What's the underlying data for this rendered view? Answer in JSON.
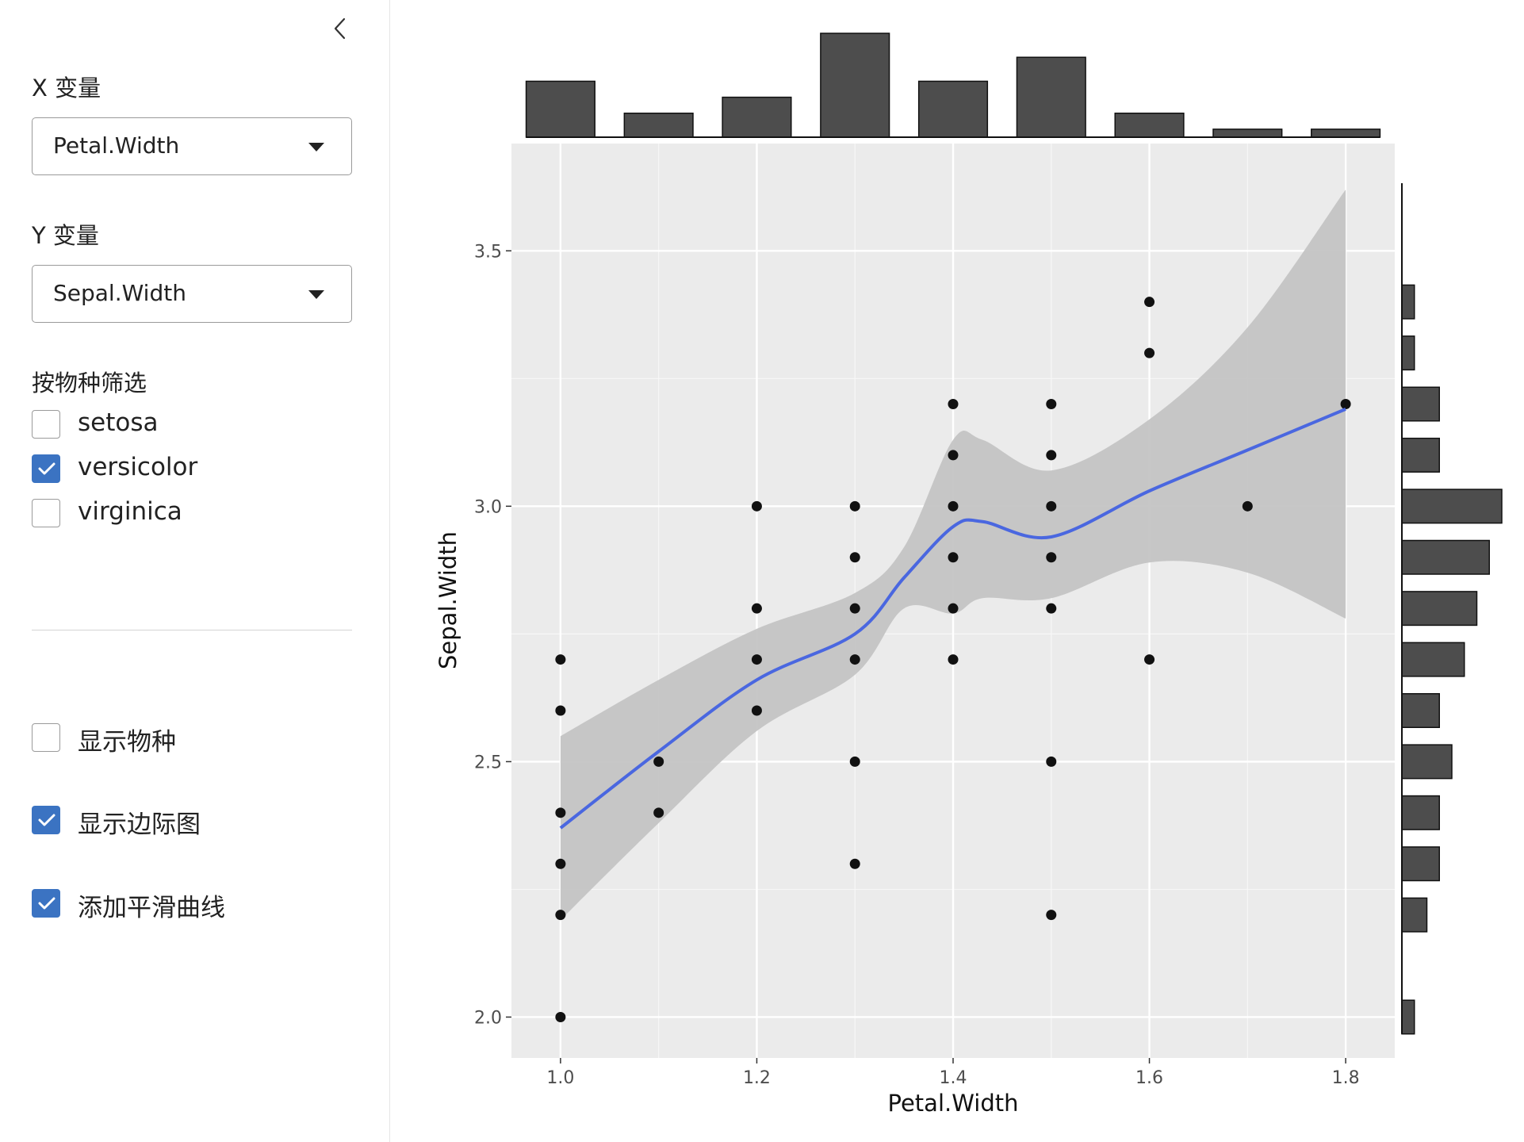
{
  "sidebar": {
    "x_var": {
      "label": "X 变量",
      "value": "Petal.Width"
    },
    "y_var": {
      "label": "Y 变量",
      "value": "Sepal.Width"
    },
    "filter": {
      "label": "按物种筛选",
      "options": [
        {
          "label": "setosa",
          "checked": false
        },
        {
          "label": "versicolor",
          "checked": true
        },
        {
          "label": "virginica",
          "checked": false
        }
      ]
    },
    "toggles": {
      "show_species": {
        "label": "显示物种",
        "checked": false
      },
      "show_marginal": {
        "label": "显示边际图",
        "checked": true
      },
      "add_smooth": {
        "label": "添加平滑曲线",
        "checked": true
      }
    }
  },
  "chart_data": {
    "type": "scatter",
    "xlabel": "Petal.Width",
    "ylabel": "Sepal.Width",
    "xlim": [
      0.95,
      1.85
    ],
    "ylim": [
      1.92,
      3.71
    ],
    "x_ticks": [
      1.0,
      1.2,
      1.4,
      1.6,
      1.8
    ],
    "x_tick_labels": [
      "1.0",
      "1.2",
      "1.4",
      "1.6",
      "1.8"
    ],
    "y_ticks": [
      2.0,
      2.5,
      3.0,
      3.5
    ],
    "y_tick_labels": [
      "2.0",
      "2.5",
      "3.0",
      "3.5"
    ],
    "grid": true,
    "panel_background": "#ebebeb",
    "points": [
      [
        1.0,
        2.0
      ],
      [
        1.0,
        2.2
      ],
      [
        1.0,
        2.3
      ],
      [
        1.0,
        2.4
      ],
      [
        1.0,
        2.6
      ],
      [
        1.0,
        2.7
      ],
      [
        1.1,
        2.4
      ],
      [
        1.1,
        2.5
      ],
      [
        1.2,
        2.6
      ],
      [
        1.2,
        2.7
      ],
      [
        1.2,
        2.8
      ],
      [
        1.2,
        3.0
      ],
      [
        1.3,
        2.3
      ],
      [
        1.3,
        2.5
      ],
      [
        1.3,
        2.7
      ],
      [
        1.3,
        2.8
      ],
      [
        1.3,
        2.9
      ],
      [
        1.3,
        3.0
      ],
      [
        1.4,
        2.7
      ],
      [
        1.4,
        2.8
      ],
      [
        1.4,
        2.9
      ],
      [
        1.4,
        3.0
      ],
      [
        1.4,
        3.1
      ],
      [
        1.4,
        3.2
      ],
      [
        1.5,
        2.2
      ],
      [
        1.5,
        2.5
      ],
      [
        1.5,
        2.8
      ],
      [
        1.5,
        2.9
      ],
      [
        1.5,
        3.0
      ],
      [
        1.5,
        3.1
      ],
      [
        1.5,
        3.2
      ],
      [
        1.6,
        2.7
      ],
      [
        1.6,
        3.3
      ],
      [
        1.6,
        3.4
      ],
      [
        1.7,
        3.0
      ],
      [
        1.8,
        3.2
      ]
    ],
    "smooth": {
      "method": "loess",
      "color": "#4a67e0",
      "band_color": "#c4c4c4",
      "fit": [
        [
          1.0,
          2.37
        ],
        [
          1.1,
          2.52
        ],
        [
          1.2,
          2.66
        ],
        [
          1.3,
          2.75
        ],
        [
          1.35,
          2.86
        ],
        [
          1.4,
          2.96
        ],
        [
          1.43,
          2.97
        ],
        [
          1.5,
          2.94
        ],
        [
          1.6,
          3.03
        ],
        [
          1.7,
          3.11
        ],
        [
          1.8,
          3.19
        ]
      ],
      "upper": [
        [
          1.0,
          2.55
        ],
        [
          1.1,
          2.66
        ],
        [
          1.2,
          2.76
        ],
        [
          1.3,
          2.83
        ],
        [
          1.35,
          2.92
        ],
        [
          1.4,
          3.13
        ],
        [
          1.43,
          3.13
        ],
        [
          1.5,
          3.07
        ],
        [
          1.6,
          3.17
        ],
        [
          1.7,
          3.35
        ],
        [
          1.8,
          3.62
        ]
      ],
      "lower": [
        [
          1.0,
          2.19
        ],
        [
          1.1,
          2.38
        ],
        [
          1.2,
          2.56
        ],
        [
          1.3,
          2.67
        ],
        [
          1.35,
          2.8
        ],
        [
          1.4,
          2.79
        ],
        [
          1.43,
          2.82
        ],
        [
          1.5,
          2.82
        ],
        [
          1.6,
          2.89
        ],
        [
          1.7,
          2.87
        ],
        [
          1.8,
          2.78
        ]
      ]
    },
    "marginal_x": {
      "bins": [
        1.0,
        1.1,
        1.2,
        1.3,
        1.4,
        1.5,
        1.6,
        1.7,
        1.8
      ],
      "counts": [
        7,
        3,
        5,
        13,
        7,
        10,
        3,
        1,
        1
      ]
    },
    "marginal_y": {
      "bins": [
        2.0,
        2.2,
        2.3,
        2.4,
        2.5,
        2.6,
        2.7,
        2.8,
        2.9,
        3.0,
        3.1,
        3.2,
        3.3,
        3.4
      ],
      "counts": [
        1,
        2,
        3,
        3,
        4,
        3,
        5,
        6,
        7,
        8,
        3,
        3,
        1,
        1
      ]
    }
  }
}
